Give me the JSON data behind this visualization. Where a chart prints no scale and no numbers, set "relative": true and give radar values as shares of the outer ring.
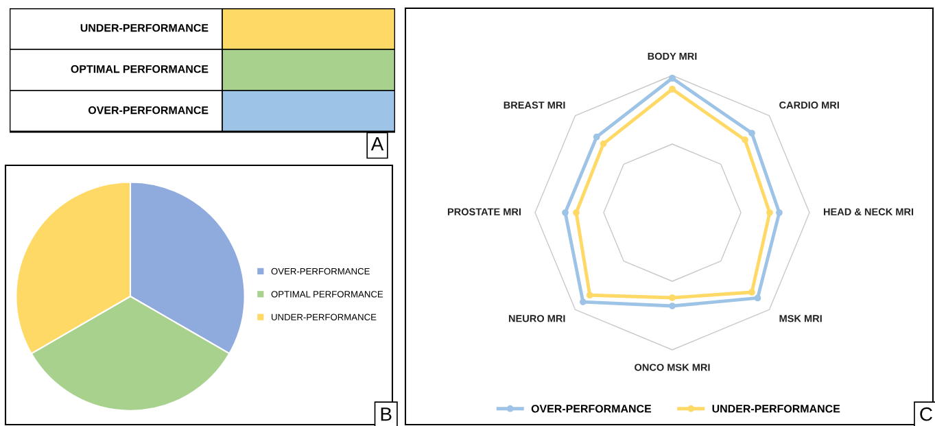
{
  "chart_data": [
    {
      "type": "other",
      "categories": [
        "UNDER-PERFORMANCE",
        "OPTIMAL PERFORMANCE",
        "OVER-PERFORMANCE"
      ],
      "annotations": [
        "A"
      ]
    },
    {
      "type": "pie",
      "categories": [
        "OVER-PERFORMANCE",
        "OPTIMAL PERFORMANCE",
        "UNDER-PERFORMANCE"
      ],
      "values": [
        33.33,
        33.33,
        33.34
      ],
      "colors": [
        "#8faadc",
        "#a9d18e",
        "#ffd966"
      ],
      "legend": "right",
      "annotations": [
        "B"
      ]
    },
    {
      "type": "radar",
      "categories": [
        "BODY MRI",
        "CARDIO MRI",
        "HEAD & NECK MRI",
        "MSK MRI",
        "ONCO MSK MRI",
        "NEURO MRI",
        "PROSTATE MRI",
        "BREAST MRI"
      ],
      "relative": true,
      "grid": true,
      "marker": "circle",
      "legend": "bottom",
      "annotations": [
        "C"
      ],
      "series": [
        {
          "name": "OVER-PERFORMANCE",
          "color": "#9dc3e6",
          "values": [
            0.98,
            0.82,
            0.78,
            0.88,
            0.68,
            0.92,
            0.78,
            0.78
          ]
        },
        {
          "name": "UNDER-PERFORMANCE",
          "color": "#ffd966",
          "values": [
            0.9,
            0.75,
            0.71,
            0.82,
            0.62,
            0.85,
            0.7,
            0.71
          ]
        }
      ]
    }
  ]
}
